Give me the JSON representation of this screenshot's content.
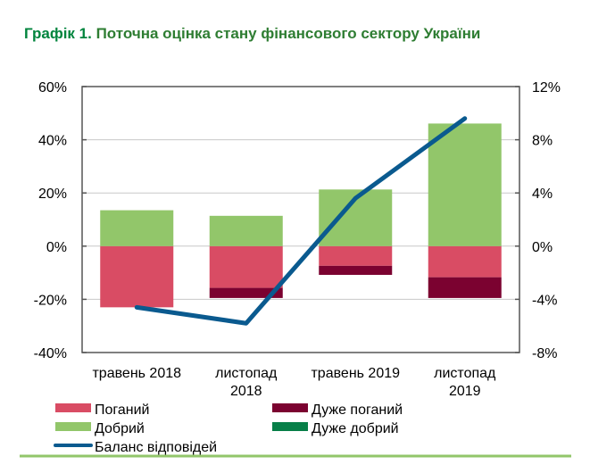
{
  "chart_data": {
    "type": "bar",
    "stacked": true,
    "title_prefix": "Графік 1.",
    "title": "Поточна оцінка стану фінансового сектору України",
    "categories": [
      [
        "травень 2018"
      ],
      [
        "листопад",
        "2018"
      ],
      [
        "травень 2019"
      ],
      [
        "листопад",
        "2019"
      ]
    ],
    "y_left": {
      "ylim": [
        -40,
        60
      ],
      "ticks": [
        -40,
        -20,
        0,
        20,
        40,
        60
      ],
      "tick_labels": [
        "-40%",
        "-20%",
        "0%",
        "20%",
        "40%",
        "60%"
      ]
    },
    "y_right": {
      "ylim": [
        -8,
        12
      ],
      "ticks": [
        -8,
        -4,
        0,
        4,
        8,
        12
      ],
      "tick_labels": [
        "-8%",
        "-4%",
        "0%",
        "4%",
        "8%",
        "12%"
      ]
    },
    "grid": true,
    "series": [
      {
        "name": "Поганий",
        "type": "bar",
        "axis": "left",
        "color": "#d94c64",
        "values": [
          -23,
          -15.7,
          -7.4,
          -11.7
        ]
      },
      {
        "name": "Дуже поганий",
        "type": "bar",
        "axis": "left",
        "color": "#7b0230",
        "values": [
          0,
          -3.8,
          -3.4,
          -7.8
        ]
      },
      {
        "name": "Добрий",
        "type": "bar",
        "axis": "left",
        "color": "#92c66a",
        "values": [
          13.5,
          11.4,
          21.3,
          46.1
        ]
      },
      {
        "name": "Дуже добрий",
        "type": "bar",
        "axis": "left",
        "color": "#077f48",
        "values": [
          0,
          0,
          0,
          0
        ]
      },
      {
        "name": "Баланс відповідей",
        "type": "line",
        "axis": "right",
        "color": "#0a5a8f",
        "values": [
          -4.6,
          -5.8,
          3.6,
          9.6
        ]
      }
    ],
    "legend_placement": "bottom"
  }
}
